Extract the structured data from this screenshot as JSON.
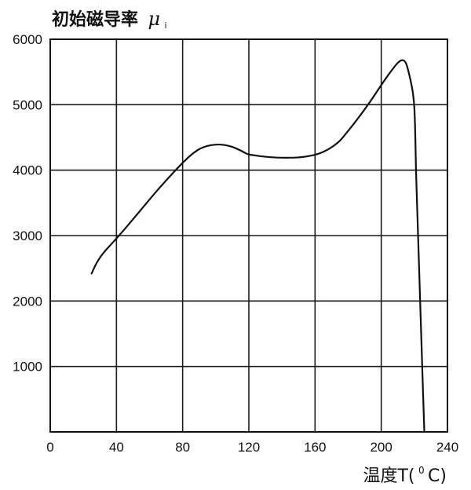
{
  "chart_data": {
    "type": "line",
    "title": "",
    "ylabel": {
      "main": "初始磁导率",
      "symbol": "μ",
      "subscript": "i"
    },
    "xlabel": {
      "main": "温度T(",
      "sup": "0",
      "unit": "C)"
    },
    "xlim": [
      0,
      240
    ],
    "ylim": [
      0,
      6000
    ],
    "xticks": [
      0,
      40,
      80,
      120,
      160,
      200,
      240
    ],
    "yticks": [
      1000,
      2000,
      3000,
      4000,
      5000,
      6000
    ],
    "grid": true,
    "series": [
      {
        "x": [
          25,
          28,
          32,
          38,
          45,
          55,
          65,
          75,
          80,
          85,
          90,
          95,
          100,
          105,
          110,
          115,
          118,
          120,
          125,
          130,
          135,
          140,
          145,
          150,
          155,
          160,
          165,
          170,
          175,
          180,
          185,
          190,
          195,
          200,
          205,
          210,
          213,
          215,
          217,
          219,
          220,
          220.5,
          221,
          222,
          223,
          224,
          225,
          226
        ],
        "y": [
          2420,
          2580,
          2730,
          2900,
          3100,
          3400,
          3700,
          3980,
          4110,
          4230,
          4320,
          4370,
          4390,
          4385,
          4355,
          4300,
          4260,
          4240,
          4220,
          4205,
          4195,
          4190,
          4190,
          4195,
          4210,
          4235,
          4280,
          4350,
          4450,
          4600,
          4760,
          4930,
          5110,
          5300,
          5480,
          5640,
          5680,
          5630,
          5450,
          5200,
          4950,
          4600,
          4000,
          3200,
          2400,
          1600,
          800,
          20
        ]
      }
    ]
  }
}
